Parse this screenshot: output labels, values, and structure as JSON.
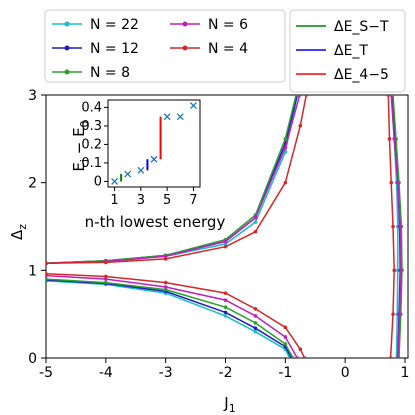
{
  "chart_data": [
    {
      "type": "line",
      "xlabel": "J_1",
      "ylabel": "Δ_z",
      "xlim": [
        -5,
        1.05
      ],
      "ylim": [
        0,
        3
      ],
      "xticks": [
        "-5",
        "-4",
        "-3",
        "-2",
        "-1",
        "0",
        "1"
      ],
      "yticks": [
        "0",
        "1",
        "2",
        "3"
      ],
      "legend_left": {
        "placement": "top-left (outside plot)",
        "entries": [
          {
            "label": "N = 22",
            "color": "#17becf"
          },
          {
            "label": "N = 12",
            "color": "#1f1fbf"
          },
          {
            "label": "N = 8",
            "color": "#2ca02c"
          },
          {
            "label": "N = 6",
            "color": "#bf1fbf"
          },
          {
            "label": "N = 4",
            "color": "#d62728"
          }
        ]
      },
      "legend_right": {
        "placement": "top-right (outside plot)",
        "entries": [
          {
            "label": "ΔE_S−T",
            "color": "#008000"
          },
          {
            "label": "ΔE_T",
            "color": "#0000ff"
          },
          {
            "label": "ΔE_4−5",
            "color": "#ff0000"
          }
        ]
      },
      "series": [
        {
          "name": "N = 22",
          "color": "#17becf",
          "upper": [
            [
              -5,
              1.08
            ],
            [
              -4,
              1.11
            ],
            [
              -3,
              1.16
            ],
            [
              -2,
              1.3
            ],
            [
              -1.5,
              1.55
            ],
            [
              -1,
              2.35
            ],
            [
              -0.8,
              3.0
            ]
          ],
          "lower": [
            [
              -5,
              0.88
            ],
            [
              -4,
              0.84
            ],
            [
              -3,
              0.74
            ],
            [
              -2,
              0.48
            ],
            [
              -1.5,
              0.3
            ],
            [
              -1,
              0.1
            ],
            [
              -0.93,
              0.0
            ]
          ],
          "right": [
            [
              0.78,
              3.0
            ],
            [
              0.82,
              2.5
            ],
            [
              0.86,
              2.0
            ],
            [
              0.88,
              1.5
            ],
            [
              0.88,
              1.0
            ],
            [
              0.87,
              0.5
            ],
            [
              0.86,
              0.0
            ]
          ]
        },
        {
          "name": "N = 12",
          "color": "#1f1fbf",
          "upper": [
            [
              -5,
              1.08
            ],
            [
              -4,
              1.11
            ],
            [
              -3,
              1.17
            ],
            [
              -2,
              1.33
            ],
            [
              -1.5,
              1.6
            ],
            [
              -1,
              2.45
            ],
            [
              -0.8,
              3.0
            ]
          ],
          "lower": [
            [
              -5,
              0.89
            ],
            [
              -4,
              0.85
            ],
            [
              -3,
              0.76
            ],
            [
              -2,
              0.52
            ],
            [
              -1.5,
              0.34
            ],
            [
              -1,
              0.13
            ],
            [
              -0.9,
              0.0
            ]
          ],
          "right": [
            [
              0.79,
              3.0
            ],
            [
              0.83,
              2.5
            ],
            [
              0.88,
              2.0
            ],
            [
              0.91,
              1.5
            ],
            [
              0.92,
              1.0
            ],
            [
              0.9,
              0.5
            ],
            [
              0.88,
              0.0
            ]
          ]
        },
        {
          "name": "N = 8",
          "color": "#2ca02c",
          "upper": [
            [
              -5,
              1.08
            ],
            [
              -4,
              1.11
            ],
            [
              -3,
              1.17
            ],
            [
              -2,
              1.35
            ],
            [
              -1.5,
              1.63
            ],
            [
              -1,
              2.5
            ],
            [
              -0.82,
              3.0
            ]
          ],
          "lower": [
            [
              -5,
              0.9
            ],
            [
              -4,
              0.86
            ],
            [
              -3,
              0.78
            ],
            [
              -2,
              0.58
            ],
            [
              -1.5,
              0.4
            ],
            [
              -1,
              0.16
            ],
            [
              -0.87,
              0.0
            ]
          ],
          "right": [
            [
              0.8,
              3.0
            ],
            [
              0.85,
              2.5
            ],
            [
              0.9,
              2.0
            ],
            [
              0.94,
              1.5
            ],
            [
              0.95,
              1.0
            ],
            [
              0.93,
              0.5
            ],
            [
              0.9,
              0.0
            ]
          ]
        },
        {
          "name": "N = 6",
          "color": "#bf1fbf",
          "upper": [
            [
              -5,
              1.08
            ],
            [
              -4,
              1.1
            ],
            [
              -3,
              1.16
            ],
            [
              -2,
              1.33
            ],
            [
              -1.5,
              1.6
            ],
            [
              -1,
              2.4
            ],
            [
              -0.76,
              3.0
            ]
          ],
          "lower": [
            [
              -5,
              0.94
            ],
            [
              -4,
              0.9
            ],
            [
              -3,
              0.81
            ],
            [
              -2,
              0.66
            ],
            [
              -1.5,
              0.48
            ],
            [
              -1,
              0.24
            ],
            [
              -0.8,
              0.0
            ]
          ],
          "right": [
            [
              0.77,
              3.0
            ],
            [
              0.82,
              2.5
            ],
            [
              0.88,
              2.0
            ],
            [
              0.92,
              1.5
            ],
            [
              0.93,
              1.0
            ],
            [
              0.91,
              0.5
            ],
            [
              0.88,
              0.0
            ]
          ]
        },
        {
          "name": "N = 4",
          "color": "#d62728",
          "upper": [
            [
              -5,
              1.08
            ],
            [
              -4,
              1.09
            ],
            [
              -3,
              1.13
            ],
            [
              -2,
              1.27
            ],
            [
              -1.5,
              1.44
            ],
            [
              -1,
              2.0
            ],
            [
              -0.75,
              2.65
            ],
            [
              -0.65,
              3.0
            ]
          ],
          "lower": [
            [
              -5,
              0.96
            ],
            [
              -4,
              0.93
            ],
            [
              -3,
              0.86
            ],
            [
              -2,
              0.74
            ],
            [
              -1.5,
              0.56
            ],
            [
              -1,
              0.35
            ],
            [
              -0.75,
              0.1
            ],
            [
              -0.68,
              0.0
            ]
          ],
          "right": [
            [
              0.72,
              3.0
            ],
            [
              0.74,
              2.5
            ],
            [
              0.77,
              2.0
            ],
            [
              0.8,
              1.5
            ],
            [
              0.82,
              1.0
            ],
            [
              0.8,
              0.5
            ],
            [
              0.76,
              0.0
            ]
          ]
        }
      ]
    },
    {
      "type": "scatter",
      "xlabel": "n-th lowest energy",
      "ylabel": "E_i − E_0",
      "xlim": [
        0.5,
        7.5
      ],
      "ylim": [
        -0.03,
        0.44
      ],
      "xticks": [
        "1",
        "3",
        "5",
        "7"
      ],
      "yticks": [
        "0",
        "0.1",
        "0.2",
        "0.3",
        "0.4"
      ],
      "points": [
        [
          1,
          0.0
        ],
        [
          2,
          0.04
        ],
        [
          3,
          0.06
        ],
        [
          4,
          0.12
        ],
        [
          5,
          0.35
        ],
        [
          6,
          0.35
        ],
        [
          7,
          0.41
        ]
      ],
      "point_color": "#1f77b4",
      "gaps": [
        {
          "x": 1.5,
          "from": 0.0,
          "to": 0.04,
          "color": "#008000"
        },
        {
          "x": 3.5,
          "from": 0.06,
          "to": 0.12,
          "color": "#0000ff"
        },
        {
          "x": 4.5,
          "from": 0.12,
          "to": 0.35,
          "color": "#ff0000"
        }
      ]
    }
  ]
}
